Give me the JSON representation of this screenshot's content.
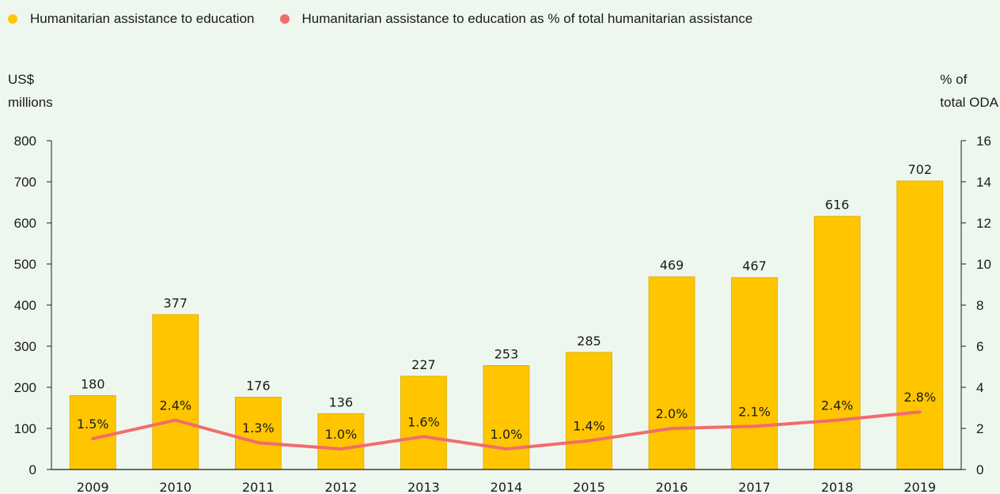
{
  "legend": {
    "series1_label": "Humanitarian assistance to education",
    "series2_label": "Humanitarian assistance to education as % of total humanitarian assistance"
  },
  "axes": {
    "left_title_line1": "US$",
    "left_title_line2": "millions",
    "right_title_line1": "% of",
    "right_title_line2": "total ODA"
  },
  "colors": {
    "bar": "#ffc600",
    "bar_edge": "#d9a800",
    "line": "#f26c6c",
    "background": "#eef7ee",
    "axis": "#1a1a1a"
  },
  "chart_data": {
    "type": "bar",
    "categories": [
      "2009",
      "2010",
      "2011",
      "2012",
      "2013",
      "2014",
      "2015",
      "2016",
      "2017",
      "2018",
      "2019"
    ],
    "series": [
      {
        "name": "Humanitarian assistance to education",
        "type": "bar",
        "axis": "left",
        "values": [
          180,
          377,
          176,
          136,
          227,
          253,
          285,
          469,
          467,
          616,
          702
        ],
        "labels": [
          "180",
          "377",
          "176",
          "136",
          "227",
          "253",
          "285",
          "469",
          "467",
          "616",
          "702"
        ]
      },
      {
        "name": "Humanitarian assistance to education as % of total humanitarian assistance",
        "type": "line",
        "axis": "right",
        "values": [
          1.5,
          2.4,
          1.3,
          1.0,
          1.6,
          1.0,
          1.4,
          2.0,
          2.1,
          2.4,
          2.8
        ],
        "labels": [
          "1.5%",
          "2.4%",
          "1.3%",
          "1.0%",
          "1.6%",
          "1.0%",
          "1.4%",
          "2.0%",
          "2.1%",
          "2.4%",
          "2.8%"
        ]
      }
    ],
    "ylim": [
      0,
      800
    ],
    "yticks": [
      "0",
      "100",
      "200",
      "300",
      "400",
      "500",
      "600",
      "700",
      "800"
    ],
    "y2lim": [
      0,
      16
    ],
    "y2ticks": [
      "0",
      "2",
      "4",
      "6",
      "8",
      "10",
      "12",
      "14",
      "16"
    ],
    "grid": false,
    "legend_position": "top-left"
  }
}
